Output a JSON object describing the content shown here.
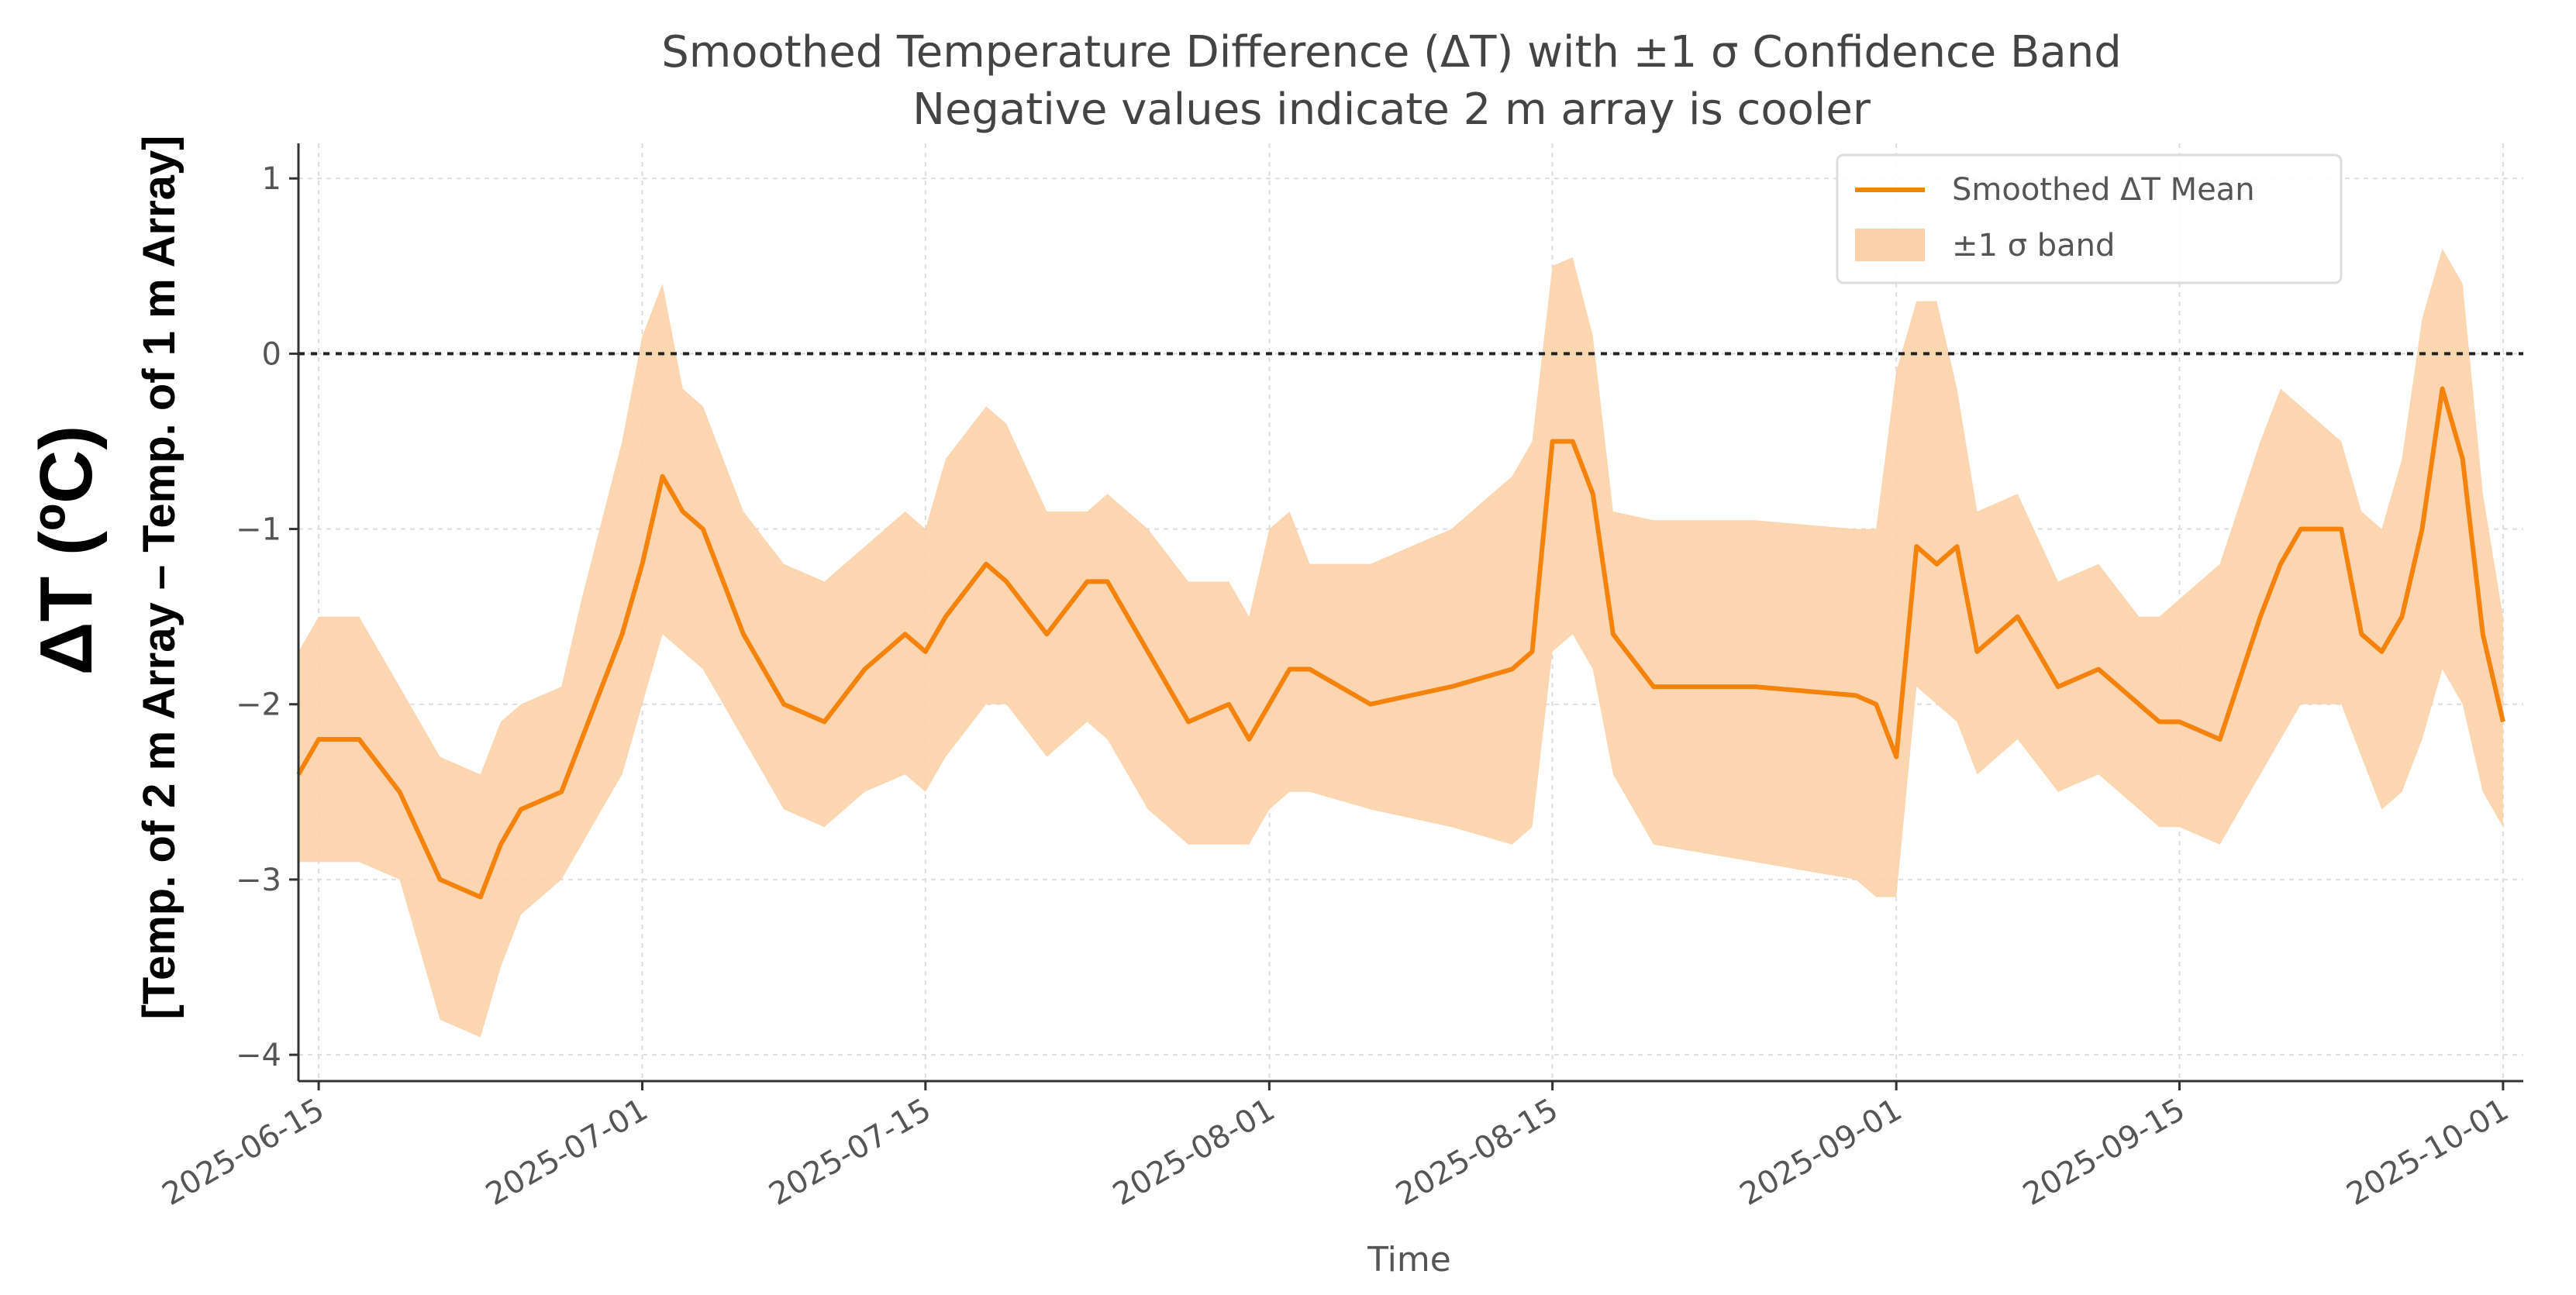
{
  "chart_data": {
    "type": "line",
    "title": "Smoothed Temperature Difference (ΔT) with ±1 σ Confidence Band",
    "subtitle": "Negative values indicate 2 m array is cooler",
    "xlabel": "Time",
    "ylabel_main": "ΔT (ºC)",
    "ylabel_sub": "[Temp. of 2 m Array – Temp. of 1 m Array]",
    "ylim": [
      -4.15,
      1.2
    ],
    "yticks": [
      1,
      0,
      -1,
      -2,
      -3,
      -4
    ],
    "ytick_labels": [
      "1",
      "0",
      "−1",
      "−2",
      "−3",
      "−4"
    ],
    "x_start": "2025-06-14",
    "x_end": "2025-10-02",
    "xticks": [
      "2025-06-15",
      "2025-07-01",
      "2025-07-15",
      "2025-08-01",
      "2025-08-15",
      "2025-09-01",
      "2025-09-15",
      "2025-10-01"
    ],
    "reference_line": {
      "y": 0,
      "style": "dotted",
      "color": "#222222"
    },
    "grid": true,
    "legend_position": "upper-right",
    "colors": {
      "mean": "#f5820a",
      "band": "#fcd0a8"
    },
    "series": [
      {
        "name": "Smoothed ΔT Mean",
        "kind": "line",
        "x": [
          "2025-06-14",
          "2025-06-15",
          "2025-06-17",
          "2025-06-19",
          "2025-06-21",
          "2025-06-23",
          "2025-06-24",
          "2025-06-25",
          "2025-06-27",
          "2025-06-28",
          "2025-06-30",
          "2025-07-01",
          "2025-07-02",
          "2025-07-03",
          "2025-07-04",
          "2025-07-06",
          "2025-07-08",
          "2025-07-10",
          "2025-07-12",
          "2025-07-14",
          "2025-07-15",
          "2025-07-16",
          "2025-07-18",
          "2025-07-19",
          "2025-07-21",
          "2025-07-23",
          "2025-07-24",
          "2025-07-26",
          "2025-07-28",
          "2025-07-30",
          "2025-07-31",
          "2025-08-01",
          "2025-08-02",
          "2025-08-03",
          "2025-08-06",
          "2025-08-10",
          "2025-08-13",
          "2025-08-14",
          "2025-08-15",
          "2025-08-16",
          "2025-08-17",
          "2025-08-18",
          "2025-08-20",
          "2025-08-25",
          "2025-08-30",
          "2025-08-31",
          "2025-09-01",
          "2025-09-02",
          "2025-09-03",
          "2025-09-04",
          "2025-09-05",
          "2025-09-07",
          "2025-09-09",
          "2025-09-11",
          "2025-09-13",
          "2025-09-14",
          "2025-09-15",
          "2025-09-17",
          "2025-09-19",
          "2025-09-20",
          "2025-09-21",
          "2025-09-23",
          "2025-09-24",
          "2025-09-25",
          "2025-09-26",
          "2025-09-27",
          "2025-09-28",
          "2025-09-29",
          "2025-09-30",
          "2025-10-01"
        ],
        "y": [
          -2.4,
          -2.2,
          -2.2,
          -2.5,
          -3.0,
          -3.1,
          -2.8,
          -2.6,
          -2.5,
          -2.2,
          -1.6,
          -1.2,
          -0.7,
          -0.9,
          -1.0,
          -1.6,
          -2.0,
          -2.1,
          -1.8,
          -1.6,
          -1.7,
          -1.5,
          -1.2,
          -1.3,
          -1.6,
          -1.3,
          -1.3,
          -1.7,
          -2.1,
          -2.0,
          -2.2,
          -2.0,
          -1.8,
          -1.8,
          -2.0,
          -1.9,
          -1.8,
          -1.7,
          -0.5,
          -0.5,
          -0.8,
          -1.6,
          -1.9,
          -1.9,
          -1.95,
          -2.0,
          -2.3,
          -1.1,
          -1.2,
          -1.1,
          -1.7,
          -1.5,
          -1.9,
          -1.8,
          -2.0,
          -2.1,
          -2.1,
          -2.2,
          -1.5,
          -1.2,
          -1.0,
          -1.0,
          -1.6,
          -1.7,
          -1.5,
          -1.0,
          -0.2,
          -0.6,
          -1.6,
          -2.1
        ]
      },
      {
        "name": "±1 σ band",
        "kind": "band",
        "x": [
          "2025-06-14",
          "2025-06-15",
          "2025-06-17",
          "2025-06-19",
          "2025-06-21",
          "2025-06-23",
          "2025-06-24",
          "2025-06-25",
          "2025-06-27",
          "2025-06-28",
          "2025-06-30",
          "2025-07-01",
          "2025-07-02",
          "2025-07-03",
          "2025-07-04",
          "2025-07-06",
          "2025-07-08",
          "2025-07-10",
          "2025-07-12",
          "2025-07-14",
          "2025-07-15",
          "2025-07-16",
          "2025-07-18",
          "2025-07-19",
          "2025-07-21",
          "2025-07-23",
          "2025-07-24",
          "2025-07-26",
          "2025-07-28",
          "2025-07-30",
          "2025-07-31",
          "2025-08-01",
          "2025-08-02",
          "2025-08-03",
          "2025-08-06",
          "2025-08-10",
          "2025-08-13",
          "2025-08-14",
          "2025-08-15",
          "2025-08-16",
          "2025-08-17",
          "2025-08-18",
          "2025-08-20",
          "2025-08-25",
          "2025-08-30",
          "2025-08-31",
          "2025-09-01",
          "2025-09-02",
          "2025-09-03",
          "2025-09-04",
          "2025-09-05",
          "2025-09-07",
          "2025-09-09",
          "2025-09-11",
          "2025-09-13",
          "2025-09-14",
          "2025-09-15",
          "2025-09-17",
          "2025-09-19",
          "2025-09-20",
          "2025-09-21",
          "2025-09-23",
          "2025-09-24",
          "2025-09-25",
          "2025-09-26",
          "2025-09-27",
          "2025-09-28",
          "2025-09-29",
          "2025-09-30",
          "2025-10-01"
        ],
        "upper": [
          -1.7,
          -1.5,
          -1.5,
          -1.9,
          -2.3,
          -2.4,
          -2.1,
          -2.0,
          -1.9,
          -1.4,
          -0.5,
          0.1,
          0.4,
          -0.2,
          -0.3,
          -0.9,
          -1.2,
          -1.3,
          -1.1,
          -0.9,
          -1.0,
          -0.6,
          -0.3,
          -0.4,
          -0.9,
          -0.9,
          -0.8,
          -1.0,
          -1.3,
          -1.3,
          -1.5,
          -1.0,
          -0.9,
          -1.2,
          -1.2,
          -1.0,
          -0.7,
          -0.5,
          0.5,
          0.55,
          0.1,
          -0.9,
          -0.95,
          -0.95,
          -1.0,
          -1.0,
          -0.1,
          0.3,
          0.3,
          -0.2,
          -0.9,
          -0.8,
          -1.3,
          -1.2,
          -1.5,
          -1.5,
          -1.4,
          -1.2,
          -0.5,
          -0.2,
          -0.3,
          -0.5,
          -0.9,
          -1.0,
          -0.6,
          0.2,
          0.6,
          0.4,
          -0.8,
          -1.5
        ],
        "lower": [
          -2.9,
          -2.9,
          -2.9,
          -3.0,
          -3.8,
          -3.9,
          -3.5,
          -3.2,
          -3.0,
          -2.8,
          -2.4,
          -2.0,
          -1.6,
          -1.7,
          -1.8,
          -2.2,
          -2.6,
          -2.7,
          -2.5,
          -2.4,
          -2.5,
          -2.3,
          -2.0,
          -2.0,
          -2.3,
          -2.1,
          -2.2,
          -2.6,
          -2.8,
          -2.8,
          -2.8,
          -2.6,
          -2.5,
          -2.5,
          -2.6,
          -2.7,
          -2.8,
          -2.7,
          -1.7,
          -1.6,
          -1.8,
          -2.4,
          -2.8,
          -2.9,
          -3.0,
          -3.1,
          -3.1,
          -1.9,
          -2.0,
          -2.1,
          -2.4,
          -2.2,
          -2.5,
          -2.4,
          -2.6,
          -2.7,
          -2.7,
          -2.8,
          -2.4,
          -2.2,
          -2.0,
          -2.0,
          -2.3,
          -2.6,
          -2.5,
          -2.2,
          -1.8,
          -2.0,
          -2.5,
          -2.7
        ]
      }
    ],
    "legend": [
      {
        "label": "Smoothed ΔT Mean",
        "kind": "line"
      },
      {
        "label": "±1 σ band",
        "kind": "band"
      }
    ]
  }
}
